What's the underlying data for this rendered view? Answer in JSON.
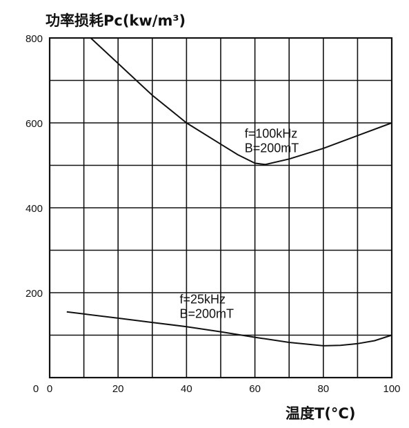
{
  "chart_data": {
    "type": "line",
    "ylabel": "功率损耗Pc(kw/m³)",
    "xlabel": "温度T(°C)",
    "xlim": [
      0,
      100
    ],
    "ylim": [
      0,
      800
    ],
    "x_ticks": [
      "0",
      "20",
      "40",
      "60",
      "80",
      "100"
    ],
    "y_ticks": [
      "0",
      "200",
      "400",
      "600",
      "800"
    ],
    "grid": true,
    "series": [
      {
        "name": "f=100kHz B=200mT",
        "label_lines": [
          "f=100kHz",
          "B=200mT"
        ],
        "x": [
          12,
          20,
          30,
          40,
          50,
          55,
          60,
          63,
          70,
          80,
          90,
          100
        ],
        "y": [
          800,
          740,
          665,
          600,
          550,
          525,
          505,
          502,
          515,
          540,
          570,
          600
        ]
      },
      {
        "name": "f=25kHz B=200mT",
        "label_lines": [
          "f=25kHz",
          "B=200mT"
        ],
        "x": [
          5,
          10,
          20,
          30,
          40,
          50,
          60,
          70,
          80,
          85,
          90,
          95,
          100
        ],
        "y": [
          155,
          150,
          140,
          130,
          120,
          108,
          95,
          83,
          75,
          76,
          80,
          87,
          100
        ]
      }
    ]
  }
}
